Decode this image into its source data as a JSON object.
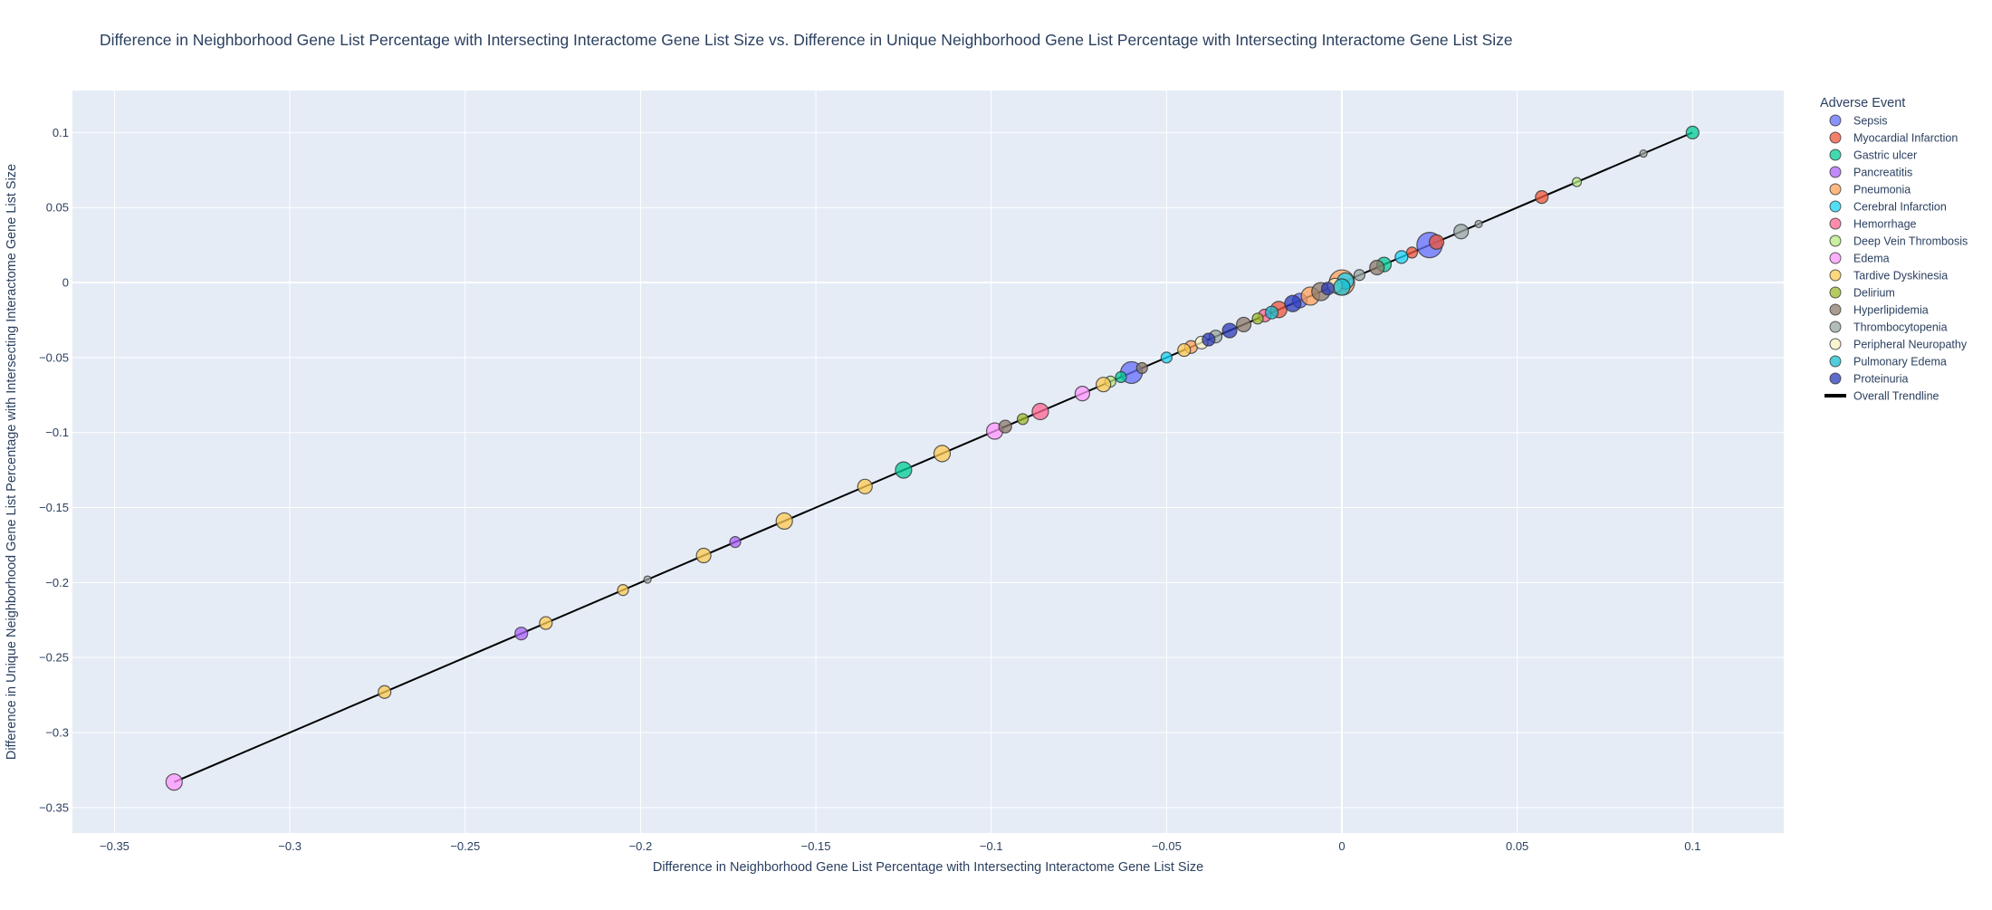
{
  "chart_data": {
    "type": "scatter",
    "title": "Difference in Neighborhood Gene List Percentage with Intersecting Interactome Gene List Size vs. Difference in Unique Neighborhood Gene List Percentage with Intersecting Interactome Gene List Size",
    "xlabel": "Difference in Neighborhood Gene List Percentage with Intersecting Interactome Gene List Size",
    "ylabel": "Difference in Unique Neighborhood Gene List Percentage with Intersecting Interactome Gene List Size",
    "xlim": [
      -0.362,
      0.126
    ],
    "ylim": [
      -0.367,
      0.128
    ],
    "x_ticks": [
      -0.35,
      -0.3,
      -0.25,
      -0.2,
      -0.15,
      -0.1,
      -0.05,
      0,
      0.05,
      0.1
    ],
    "x_tick_labels": [
      "−0.35",
      "−0.3",
      "−0.25",
      "−0.2",
      "−0.15",
      "−0.1",
      "−0.05",
      "0",
      "0.05",
      "0.1"
    ],
    "y_ticks": [
      -0.35,
      -0.3,
      -0.25,
      -0.2,
      -0.15,
      -0.1,
      -0.05,
      0,
      0.05,
      0.1
    ],
    "y_tick_labels": [
      "−0.35",
      "−0.3",
      "−0.25",
      "−0.2",
      "−0.15",
      "−0.1",
      "−0.05",
      "0",
      "0.05",
      "0.1"
    ],
    "grid": true,
    "legend": {
      "title": "Adverse Event",
      "placement": "right"
    },
    "trendline": {
      "name": "Overall Trendline",
      "x": [
        -0.333,
        0.1
      ],
      "y": [
        -0.333,
        0.1
      ],
      "color": "#000000"
    },
    "series": [
      {
        "name": "Sepsis",
        "color": "#636efa",
        "points": [
          [
            -0.06,
            -0.06,
            12
          ],
          [
            0.025,
            0.025,
            14
          ],
          [
            -0.012,
            -0.012,
            8
          ]
        ]
      },
      {
        "name": "Myocardial Infarction",
        "color": "#ef553b",
        "points": [
          [
            0.057,
            0.057,
            7
          ],
          [
            -0.018,
            -0.018,
            9
          ],
          [
            0.02,
            0.02,
            6
          ],
          [
            0.027,
            0.027,
            8
          ]
        ]
      },
      {
        "name": "Gastric ulcer",
        "color": "#00cc96",
        "points": [
          [
            0.1,
            0.1,
            7
          ],
          [
            -0.125,
            -0.125,
            9
          ],
          [
            0.012,
            0.012,
            8
          ],
          [
            -0.063,
            -0.063,
            6
          ]
        ]
      },
      {
        "name": "Pancreatitis",
        "color": "#ab63fa",
        "points": [
          [
            -0.173,
            -0.173,
            6
          ],
          [
            -0.234,
            -0.234,
            7
          ]
        ]
      },
      {
        "name": "Pneumonia",
        "color": "#ffa15a",
        "points": [
          [
            0.0,
            0.0,
            14
          ],
          [
            -0.009,
            -0.009,
            10
          ],
          [
            -0.043,
            -0.043,
            7
          ]
        ]
      },
      {
        "name": "Cerebral Infarction",
        "color": "#19d3f3",
        "points": [
          [
            0.017,
            0.017,
            7
          ],
          [
            -0.05,
            -0.05,
            6
          ],
          [
            0.001,
            0.001,
            9
          ]
        ]
      },
      {
        "name": "Hemorrhage",
        "color": "#ff6692",
        "points": [
          [
            -0.086,
            -0.086,
            9
          ],
          [
            -0.022,
            -0.022,
            7
          ]
        ]
      },
      {
        "name": "Deep Vein Thrombosis",
        "color": "#b6e880",
        "points": [
          [
            0.067,
            0.067,
            5
          ],
          [
            -0.066,
            -0.066,
            6
          ]
        ]
      },
      {
        "name": "Edema",
        "color": "#ff97ff",
        "points": [
          [
            -0.333,
            -0.333,
            9
          ],
          [
            -0.099,
            -0.099,
            9
          ],
          [
            -0.074,
            -0.074,
            8
          ]
        ]
      },
      {
        "name": "Tardive Dyskinesia",
        "color": "#fecb52",
        "points": [
          [
            -0.273,
            -0.273,
            7
          ],
          [
            -0.227,
            -0.227,
            7
          ],
          [
            -0.205,
            -0.205,
            6
          ],
          [
            -0.182,
            -0.182,
            8
          ],
          [
            -0.159,
            -0.159,
            9
          ],
          [
            -0.136,
            -0.136,
            8
          ],
          [
            -0.114,
            -0.114,
            9
          ],
          [
            -0.068,
            -0.068,
            8
          ],
          [
            -0.045,
            -0.045,
            7
          ]
        ]
      },
      {
        "name": "Delirium",
        "color": "#9dba2a",
        "points": [
          [
            -0.091,
            -0.091,
            6
          ],
          [
            -0.024,
            -0.024,
            6
          ]
        ]
      },
      {
        "name": "Hyperlipidemia",
        "color": "#8c7a6b",
        "points": [
          [
            -0.096,
            -0.096,
            7
          ],
          [
            -0.057,
            -0.057,
            6
          ],
          [
            0.01,
            0.01,
            8
          ],
          [
            -0.028,
            -0.028,
            8
          ],
          [
            -0.006,
            -0.006,
            10
          ]
        ]
      },
      {
        "name": "Thrombocytopenia",
        "color": "#98a6a2",
        "points": [
          [
            0.034,
            0.034,
            8
          ],
          [
            0.086,
            0.086,
            4
          ],
          [
            0.039,
            0.039,
            4
          ],
          [
            -0.198,
            -0.198,
            4
          ],
          [
            0.005,
            0.005,
            6
          ],
          [
            -0.036,
            -0.036,
            7
          ]
        ]
      },
      {
        "name": "Peripheral Neuropathy",
        "color": "#f7f1c1",
        "points": [
          [
            -0.04,
            -0.04,
            7
          ],
          [
            -0.002,
            -0.002,
            8
          ]
        ]
      },
      {
        "name": "Pulmonary Edema",
        "color": "#17becf",
        "points": [
          [
            -0.02,
            -0.02,
            7
          ],
          [
            0.0,
            -0.003,
            9
          ]
        ]
      },
      {
        "name": "Proteinuria",
        "color": "#2b3ab8",
        "points": [
          [
            -0.032,
            -0.032,
            8
          ],
          [
            -0.014,
            -0.014,
            9
          ],
          [
            -0.004,
            -0.004,
            7
          ],
          [
            -0.038,
            -0.038,
            7
          ]
        ]
      }
    ]
  }
}
